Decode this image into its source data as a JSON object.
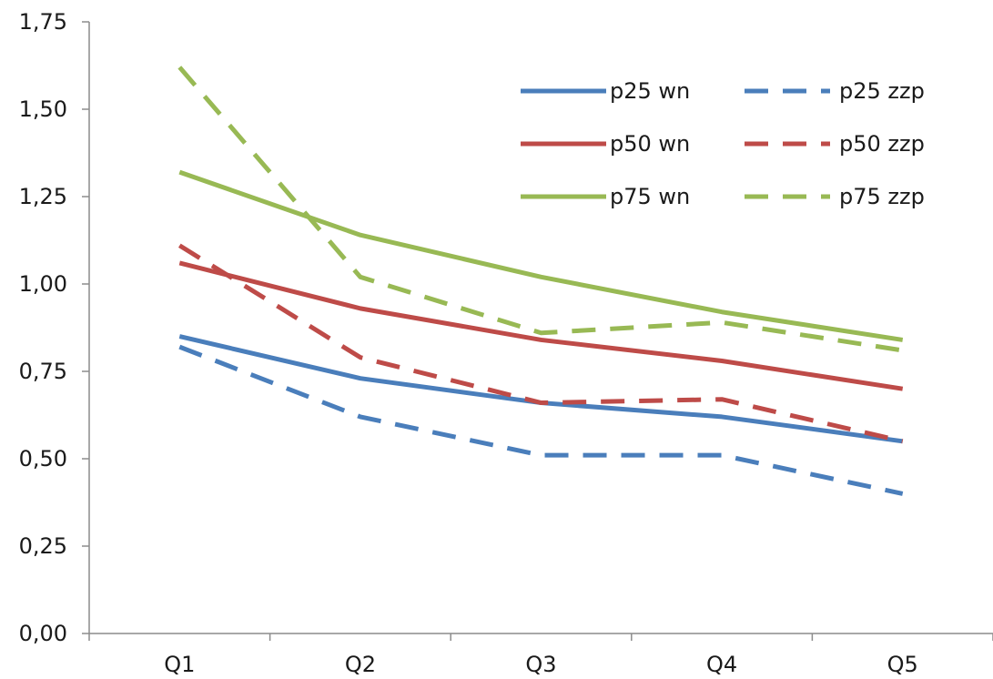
{
  "chart_data": {
    "type": "line",
    "title": "",
    "xlabel": "",
    "ylabel": "",
    "categories": [
      "Q1",
      "Q2",
      "Q3",
      "Q4",
      "Q5"
    ],
    "ylim": [
      0,
      1.75
    ],
    "yticks": [
      0,
      0.25,
      0.5,
      0.75,
      1.0,
      1.25,
      1.5,
      1.75
    ],
    "ytick_labels": [
      "0,00",
      "0,25",
      "0,50",
      "0,75",
      "1,00",
      "1,25",
      "1,50",
      "1,75"
    ],
    "grid": false,
    "legend_position": "top-right",
    "series": [
      {
        "name": "p25 wn",
        "color": "#4a7ebb",
        "style": "solid",
        "values": [
          0.85,
          0.73,
          0.66,
          0.62,
          0.55
        ]
      },
      {
        "name": "p25 zzp",
        "color": "#4a7ebb",
        "style": "dashed",
        "values": [
          0.82,
          0.62,
          0.51,
          0.51,
          0.4
        ]
      },
      {
        "name": "p50 wn",
        "color": "#be4b48",
        "style": "solid",
        "values": [
          1.06,
          0.93,
          0.84,
          0.78,
          0.7
        ]
      },
      {
        "name": "p50 zzp",
        "color": "#be4b48",
        "style": "dashed",
        "values": [
          1.11,
          0.79,
          0.66,
          0.67,
          0.55
        ]
      },
      {
        "name": "p75 wn",
        "color": "#98b954",
        "style": "solid",
        "values": [
          1.32,
          1.14,
          1.02,
          0.92,
          0.84
        ]
      },
      {
        "name": "p75 zzp",
        "color": "#98b954",
        "style": "dashed",
        "values": [
          1.62,
          1.02,
          0.86,
          0.89,
          0.81
        ]
      }
    ]
  }
}
